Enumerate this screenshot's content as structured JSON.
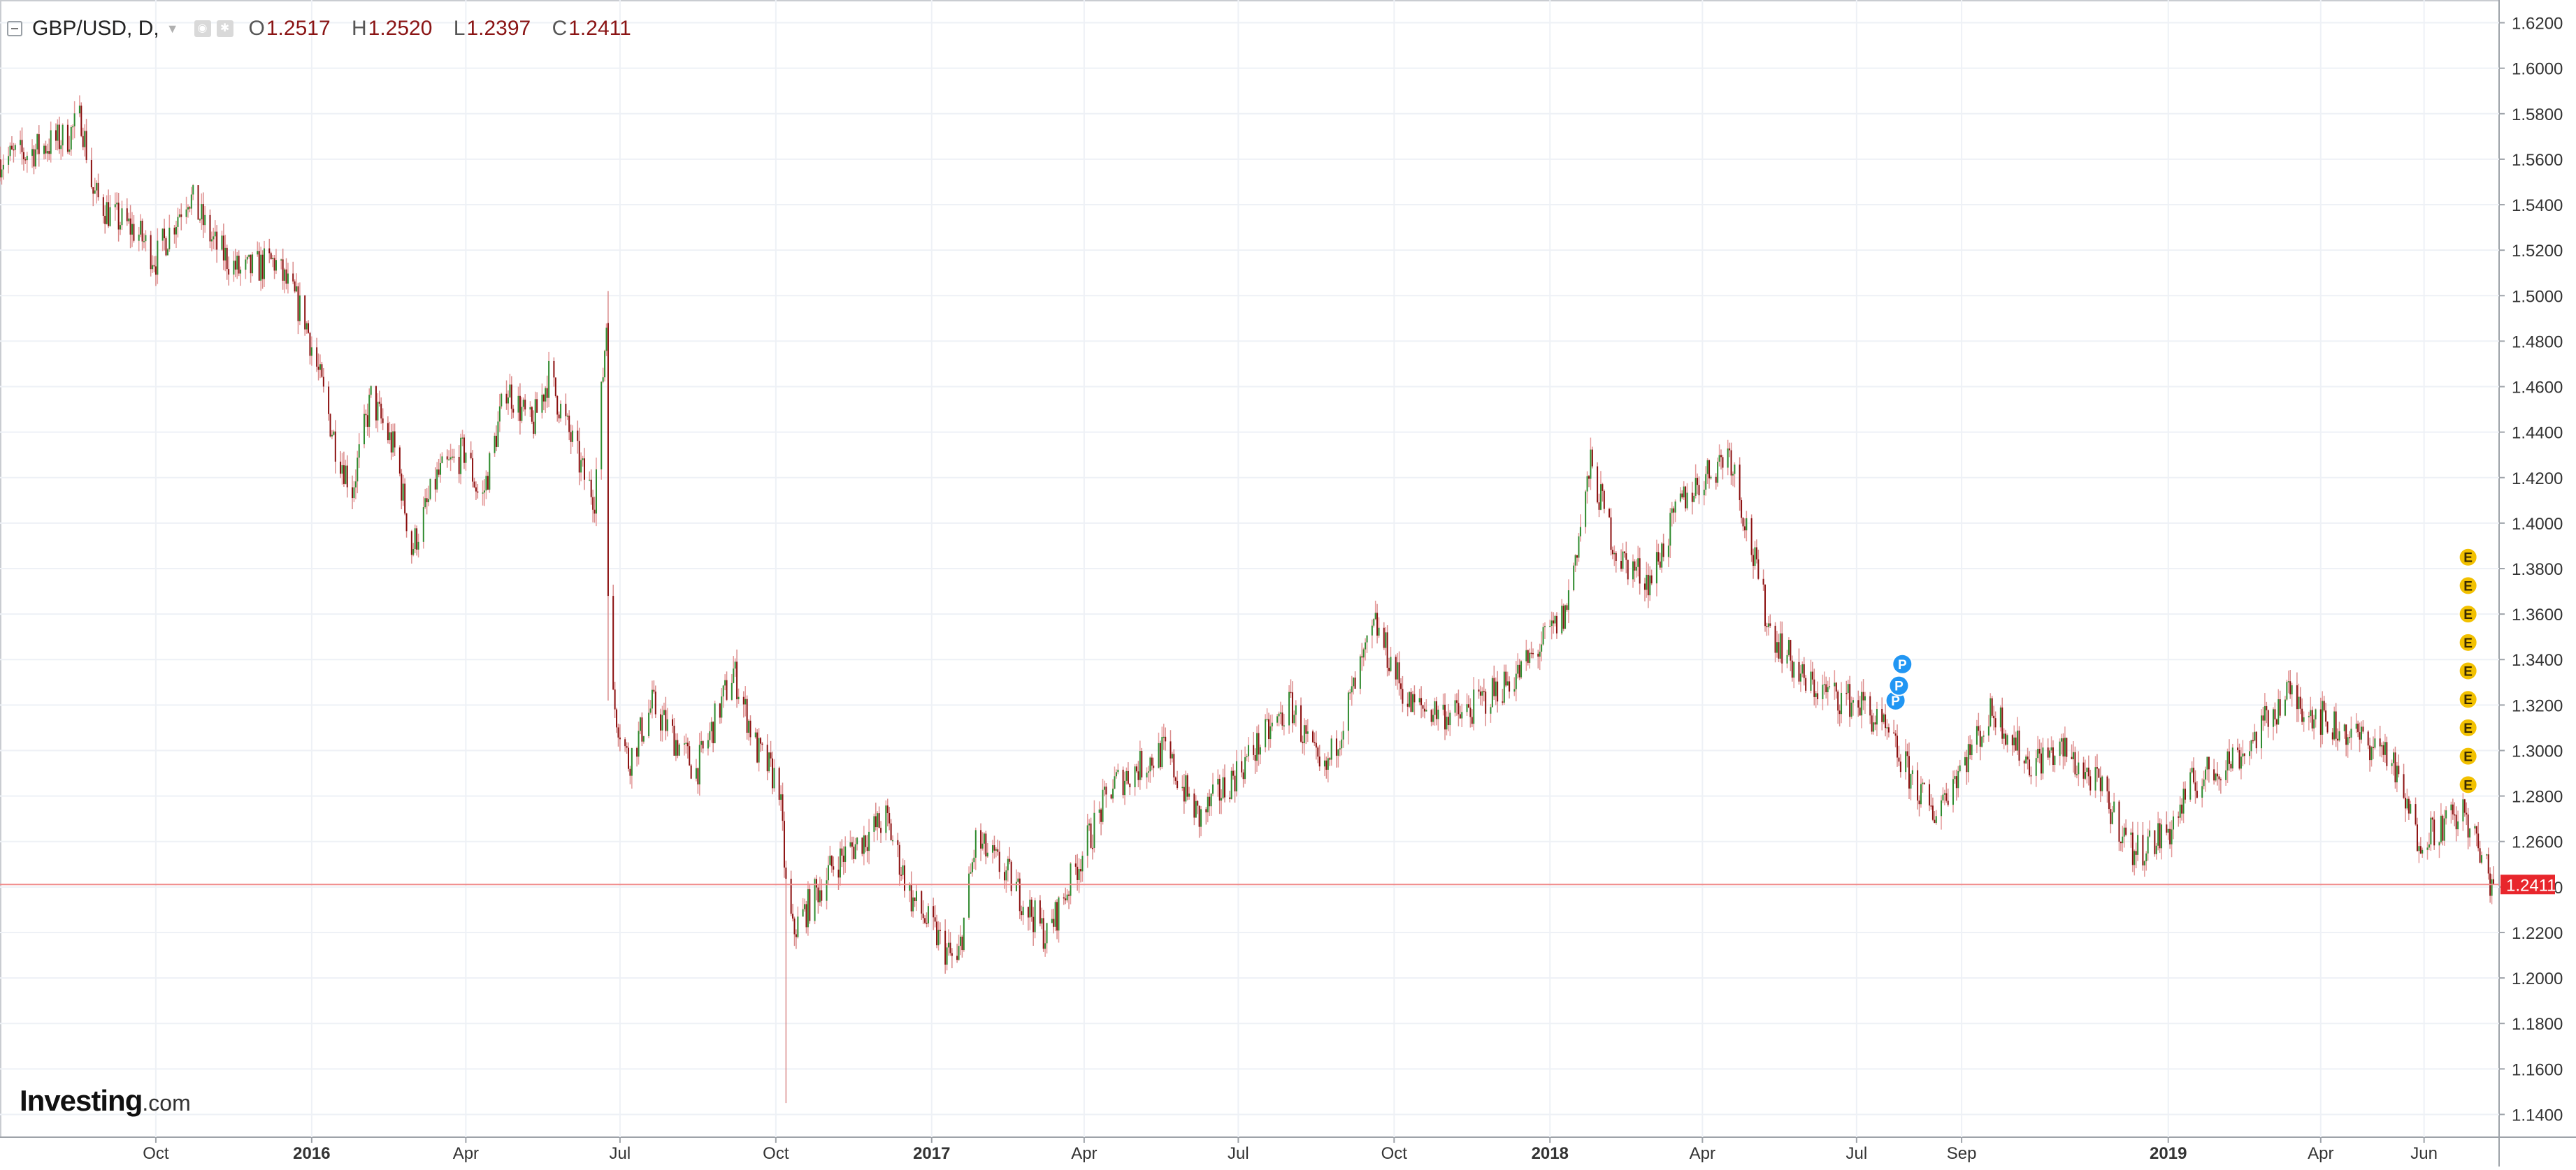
{
  "header": {
    "symbol": "GBP/USD, D,",
    "o_key": "O",
    "o": "1.2517",
    "h_key": "H",
    "h": "1.2520",
    "l_key": "L",
    "l": "1.2397",
    "c_key": "C",
    "c": "1.2411"
  },
  "logo": {
    "brand": "Investing",
    "domain": ".com"
  },
  "last_price_label": "1.2411",
  "colors": {
    "up": "#2e8b2e",
    "down": "#8b1010",
    "last_price": "#e8262c",
    "marker_p": "#2196f3",
    "marker_e": "#f2c100",
    "grid": "#eef1f6"
  },
  "chart_data": {
    "type": "candlestick",
    "symbol": "GBP/USD",
    "interval": "D",
    "x_tick_labels": [
      "Oct",
      "2016",
      "Apr",
      "Jul",
      "Oct",
      "2017",
      "Apr",
      "Jul",
      "Oct",
      "2018",
      "Apr",
      "Jul",
      "Sep",
      "2019",
      "Apr",
      "Jun"
    ],
    "x_ticks": [
      "2015-10-01",
      "2016-01-01",
      "2016-04-01",
      "2016-07-01",
      "2016-10-01",
      "2017-01-01",
      "2017-04-01",
      "2017-07-01",
      "2017-10-01",
      "2018-01-01",
      "2018-04-01",
      "2018-07-01",
      "2018-09-01",
      "2019-01-01",
      "2019-04-01",
      "2019-06-01"
    ],
    "x_range": [
      "2015-07-01",
      "2019-07-12"
    ],
    "y_ticks": [
      "1.1400",
      "1.1600",
      "1.1800",
      "1.2000",
      "1.2200",
      "1.2400",
      "1.2600",
      "1.2800",
      "1.3000",
      "1.3200",
      "1.3400",
      "1.3600",
      "1.3800",
      "1.4000",
      "1.4200",
      "1.4400",
      "1.4600",
      "1.4800",
      "1.5000",
      "1.5200",
      "1.5400",
      "1.5600",
      "1.5800",
      "1.6000",
      "1.6200"
    ],
    "ylim": [
      1.13,
      1.63
    ],
    "grid": true,
    "last_price": 1.2411,
    "price_path": [
      [
        "2015-07-01",
        1.56
      ],
      [
        "2015-07-15",
        1.562
      ],
      [
        "2015-08-10",
        1.57
      ],
      [
        "2015-08-18",
        1.578
      ],
      [
        "2015-08-25",
        1.545
      ],
      [
        "2015-09-05",
        1.535
      ],
      [
        "2015-09-20",
        1.528
      ],
      [
        "2015-10-01",
        1.516
      ],
      [
        "2015-10-20",
        1.545
      ],
      [
        "2015-11-05",
        1.522
      ],
      [
        "2015-11-20",
        1.51
      ],
      [
        "2015-12-10",
        1.515
      ],
      [
        "2015-12-28",
        1.49
      ],
      [
        "2016-01-15",
        1.435
      ],
      [
        "2016-01-25",
        1.415
      ],
      [
        "2016-02-05",
        1.455
      ],
      [
        "2016-02-20",
        1.43
      ],
      [
        "2016-02-29",
        1.388
      ],
      [
        "2016-03-15",
        1.42
      ],
      [
        "2016-04-01",
        1.432
      ],
      [
        "2016-04-10",
        1.408
      ],
      [
        "2016-04-25",
        1.46
      ],
      [
        "2016-05-10",
        1.442
      ],
      [
        "2016-05-20",
        1.465
      ],
      [
        "2016-06-10",
        1.42
      ],
      [
        "2016-06-16",
        1.412
      ],
      [
        "2016-06-23",
        1.488
      ],
      [
        "2016-06-24",
        1.368
      ],
      [
        "2016-06-27",
        1.322
      ],
      [
        "2016-07-06",
        1.295
      ],
      [
        "2016-07-20",
        1.32
      ],
      [
        "2016-08-15",
        1.291
      ],
      [
        "2016-09-06",
        1.335
      ],
      [
        "2016-09-20",
        1.3
      ],
      [
        "2016-10-03",
        1.285
      ],
      [
        "2016-10-07",
        1.24
      ],
      [
        "2016-10-11",
        1.22
      ],
      [
        "2016-11-04",
        1.25
      ],
      [
        "2016-12-05",
        1.27
      ],
      [
        "2016-12-20",
        1.235
      ],
      [
        "2017-01-16",
        1.205
      ],
      [
        "2017-01-27",
        1.26
      ],
      [
        "2017-02-15",
        1.245
      ],
      [
        "2017-03-10",
        1.218
      ],
      [
        "2017-03-31",
        1.255
      ],
      [
        "2017-04-18",
        1.285
      ],
      [
        "2017-05-18",
        1.3
      ],
      [
        "2017-06-08",
        1.27
      ],
      [
        "2017-07-05",
        1.295
      ],
      [
        "2017-08-01",
        1.32
      ],
      [
        "2017-08-20",
        1.287
      ],
      [
        "2017-09-20",
        1.355
      ],
      [
        "2017-10-10",
        1.32
      ],
      [
        "2017-11-10",
        1.315
      ],
      [
        "2017-12-15",
        1.335
      ],
      [
        "2018-01-10",
        1.36
      ],
      [
        "2018-01-25",
        1.425
      ],
      [
        "2018-02-10",
        1.385
      ],
      [
        "2018-03-01",
        1.375
      ],
      [
        "2018-03-20",
        1.41
      ],
      [
        "2018-04-17",
        1.432
      ],
      [
        "2018-05-10",
        1.355
      ],
      [
        "2018-05-31",
        1.33
      ],
      [
        "2018-06-15",
        1.325
      ],
      [
        "2018-07-05",
        1.32
      ],
      [
        "2018-07-20",
        1.305
      ],
      [
        "2018-08-15",
        1.272
      ],
      [
        "2018-09-20",
        1.318
      ],
      [
        "2018-10-10",
        1.295
      ],
      [
        "2018-10-31",
        1.3
      ],
      [
        "2018-11-20",
        1.285
      ],
      [
        "2018-12-12",
        1.255
      ],
      [
        "2019-01-02",
        1.265
      ],
      [
        "2019-01-15",
        1.285
      ],
      [
        "2019-02-15",
        1.3
      ],
      [
        "2019-03-12",
        1.325
      ],
      [
        "2019-04-10",
        1.31
      ],
      [
        "2019-05-10",
        1.3
      ],
      [
        "2019-05-28",
        1.262
      ],
      [
        "2019-06-25",
        1.272
      ],
      [
        "2019-07-09",
        1.245
      ],
      [
        "2019-07-12",
        1.2411
      ]
    ],
    "event_markers": [
      {
        "label": "P",
        "date": "2018-07-24",
        "price": 1.322
      },
      {
        "label": "P",
        "date": "2018-07-26",
        "price": 1.3285
      },
      {
        "label": "P",
        "date": "2018-07-28",
        "price": 1.338
      },
      {
        "label": "E",
        "date": "2019-06-27",
        "price": 1.285
      },
      {
        "label": "E",
        "date": "2019-06-27",
        "price": 1.2975
      },
      {
        "label": "E",
        "date": "2019-06-27",
        "price": 1.31
      },
      {
        "label": "E",
        "date": "2019-06-27",
        "price": 1.3225
      },
      {
        "label": "E",
        "date": "2019-06-27",
        "price": 1.335
      },
      {
        "label": "E",
        "date": "2019-06-27",
        "price": 1.3475
      },
      {
        "label": "E",
        "date": "2019-06-27",
        "price": 1.36
      },
      {
        "label": "E",
        "date": "2019-06-27",
        "price": 1.3725
      },
      {
        "label": "E",
        "date": "2019-06-27",
        "price": 1.385
      }
    ]
  }
}
